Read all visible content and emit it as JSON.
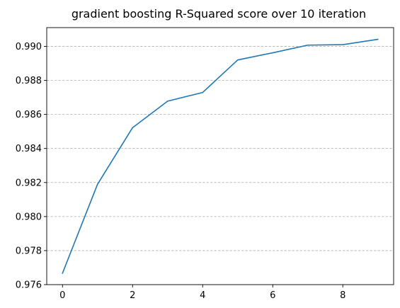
{
  "chart_data": {
    "type": "line",
    "title": "gradient boosting R-Squared score over 10 iteration",
    "xlabel": "",
    "ylabel": "",
    "x": [
      0,
      1,
      2,
      3,
      4,
      5,
      6,
      7,
      8,
      9
    ],
    "series": [
      {
        "values": [
          0.97667,
          0.9819,
          0.98522,
          0.98678,
          0.98729,
          0.9892,
          0.98962,
          0.99007,
          0.9901,
          0.99041
        ],
        "color": "#1f77b4"
      }
    ],
    "xlim": [
      -0.45,
      9.45
    ],
    "ylim": [
      0.976,
      0.9911
    ],
    "xticks": [
      0,
      2,
      4,
      6,
      8
    ],
    "xtick_labels": [
      "0",
      "2",
      "4",
      "6",
      "8"
    ],
    "yticks": [
      0.976,
      0.978,
      0.98,
      0.982,
      0.984,
      0.986,
      0.988,
      0.99
    ],
    "ytick_labels": [
      "0.976",
      "0.978",
      "0.980",
      "0.982",
      "0.984",
      "0.986",
      "0.988",
      "0.990"
    ],
    "grid": {
      "axis": "y",
      "style": "dashed",
      "color": "#b0b0b0"
    }
  }
}
